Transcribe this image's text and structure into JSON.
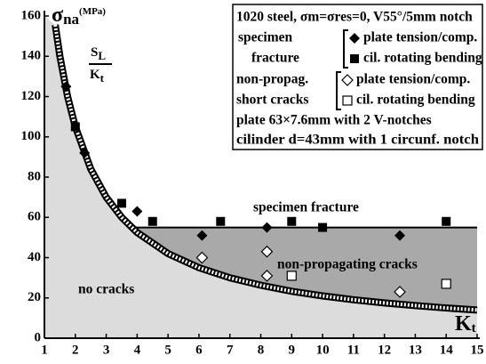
{
  "chart_data": {
    "type": "scatter",
    "xlim": [
      1,
      15
    ],
    "ylim": [
      0,
      160
    ],
    "xticks": [
      1,
      2,
      3,
      4,
      5,
      6,
      7,
      8,
      9,
      10,
      11,
      12,
      13,
      14,
      15
    ],
    "yticks": [
      0,
      20,
      40,
      60,
      80,
      100,
      120,
      140,
      160
    ],
    "y_label": {
      "symbol": "σ",
      "sub": "na",
      "unit": "(MPa)"
    },
    "x_label": {
      "symbol": "K",
      "sub": "t"
    },
    "curve_label": {
      "num": "S",
      "num_sub": "L",
      "den": "K",
      "den_sub": "t"
    },
    "curve": {
      "x": [
        1.35,
        1.5,
        1.75,
        2,
        2.5,
        3,
        3.5,
        4,
        5,
        6,
        7,
        8,
        9,
        10,
        11,
        12,
        13,
        14,
        15
      ],
      "values": [
        155.6,
        140,
        120,
        105,
        84,
        70,
        60,
        52.5,
        42,
        35,
        30,
        26.3,
        23.3,
        21,
        19.1,
        17.5,
        16.2,
        15,
        14
      ]
    },
    "fracture_limit": {
      "x": [
        3.82,
        15
      ],
      "values": [
        55,
        55
      ]
    },
    "regions": [
      "specimen fracture",
      "non-propagating cracks",
      "no cracks"
    ],
    "legend_title": "1020 steel, σm=σres=0, V55°/5mm notch",
    "legend_groups": [
      [
        "specimen",
        "fracture"
      ],
      [
        "non-propag.",
        "short cracks"
      ]
    ],
    "notes": [
      "plate 63×7.6mm with 2 V-notches",
      "cilinder d=43mm with 1 circunf. notch"
    ],
    "series": [
      {
        "name": "plate tension/comp.",
        "marker": "diamond",
        "filled": true,
        "x": [
          1.7,
          2.3,
          4,
          6.1,
          8.2,
          12.5
        ],
        "values": [
          125,
          92,
          63,
          51,
          55,
          51
        ]
      },
      {
        "name": "cil. rotating bending",
        "marker": "square",
        "filled": true,
        "x": [
          2,
          3.5,
          4.5,
          6.7,
          9,
          10,
          14
        ],
        "values": [
          105,
          67,
          58,
          58,
          58,
          55,
          58
        ]
      },
      {
        "name": "plate tension/comp.",
        "marker": "diamond",
        "filled": false,
        "x": [
          6.1,
          8.2,
          8.2,
          12.5
        ],
        "values": [
          40,
          43,
          31,
          23
        ]
      },
      {
        "name": "cil. rotating bending",
        "marker": "square",
        "filled": false,
        "x": [
          9,
          14
        ],
        "values": [
          31,
          27
        ]
      }
    ]
  }
}
